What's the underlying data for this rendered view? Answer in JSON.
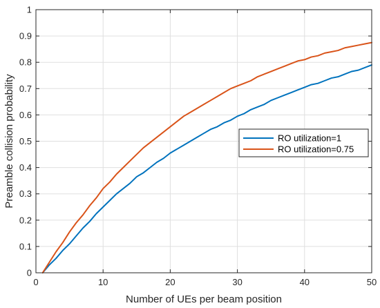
{
  "chart_data": {
    "type": "line",
    "xlabel": "Number of UEs per beam position",
    "ylabel": "Preamble collision probability",
    "xlim": [
      0,
      50
    ],
    "ylim": [
      0,
      1
    ],
    "xticks": [
      0,
      10,
      20,
      30,
      40,
      50
    ],
    "yticks": [
      0,
      0.1,
      0.2,
      0.3,
      0.4,
      0.5,
      0.6,
      0.7,
      0.8,
      0.9,
      1
    ],
    "xtick_labels": [
      "0",
      "10",
      "20",
      "30",
      "40",
      "50"
    ],
    "ytick_labels": [
      "0",
      "0.1",
      "0.2",
      "0.3",
      "0.4",
      "0.5",
      "0.6",
      "0.7",
      "0.8",
      "0.9",
      "1"
    ],
    "grid": true,
    "legend_position": "right",
    "series": [
      {
        "name": "RO utilization=1",
        "color": "#0072BD",
        "x": [
          1,
          2,
          3,
          4,
          5,
          6,
          7,
          8,
          9,
          10,
          11,
          12,
          13,
          14,
          15,
          16,
          17,
          18,
          19,
          20,
          21,
          22,
          23,
          24,
          25,
          26,
          27,
          28,
          29,
          30,
          31,
          32,
          33,
          34,
          35,
          36,
          37,
          38,
          39,
          40,
          41,
          42,
          43,
          44,
          45,
          46,
          47,
          48,
          49,
          50
        ],
        "values": [
          0,
          0.03,
          0.055,
          0.085,
          0.11,
          0.14,
          0.17,
          0.195,
          0.225,
          0.25,
          0.275,
          0.3,
          0.32,
          0.34,
          0.365,
          0.38,
          0.4,
          0.42,
          0.435,
          0.455,
          0.47,
          0.485,
          0.5,
          0.515,
          0.53,
          0.545,
          0.555,
          0.57,
          0.58,
          0.595,
          0.605,
          0.62,
          0.63,
          0.64,
          0.655,
          0.665,
          0.675,
          0.685,
          0.695,
          0.705,
          0.715,
          0.72,
          0.73,
          0.74,
          0.745,
          0.755,
          0.765,
          0.77,
          0.78,
          0.79
        ]
      },
      {
        "name": "RO utilization=0.75",
        "color": "#D95319",
        "x": [
          1,
          2,
          3,
          4,
          5,
          6,
          7,
          8,
          9,
          10,
          11,
          12,
          13,
          14,
          15,
          16,
          17,
          18,
          19,
          20,
          21,
          22,
          23,
          24,
          25,
          26,
          27,
          28,
          29,
          30,
          31,
          32,
          33,
          34,
          35,
          36,
          37,
          38,
          39,
          40,
          41,
          42,
          43,
          44,
          45,
          46,
          47,
          48,
          49,
          50
        ],
        "values": [
          0,
          0.04,
          0.08,
          0.115,
          0.155,
          0.19,
          0.22,
          0.255,
          0.285,
          0.32,
          0.345,
          0.375,
          0.4,
          0.425,
          0.45,
          0.475,
          0.495,
          0.515,
          0.535,
          0.555,
          0.575,
          0.595,
          0.61,
          0.625,
          0.64,
          0.655,
          0.67,
          0.685,
          0.7,
          0.71,
          0.72,
          0.73,
          0.745,
          0.755,
          0.765,
          0.775,
          0.785,
          0.795,
          0.805,
          0.81,
          0.82,
          0.825,
          0.835,
          0.84,
          0.845,
          0.855,
          0.86,
          0.865,
          0.87,
          0.875
        ]
      }
    ]
  }
}
